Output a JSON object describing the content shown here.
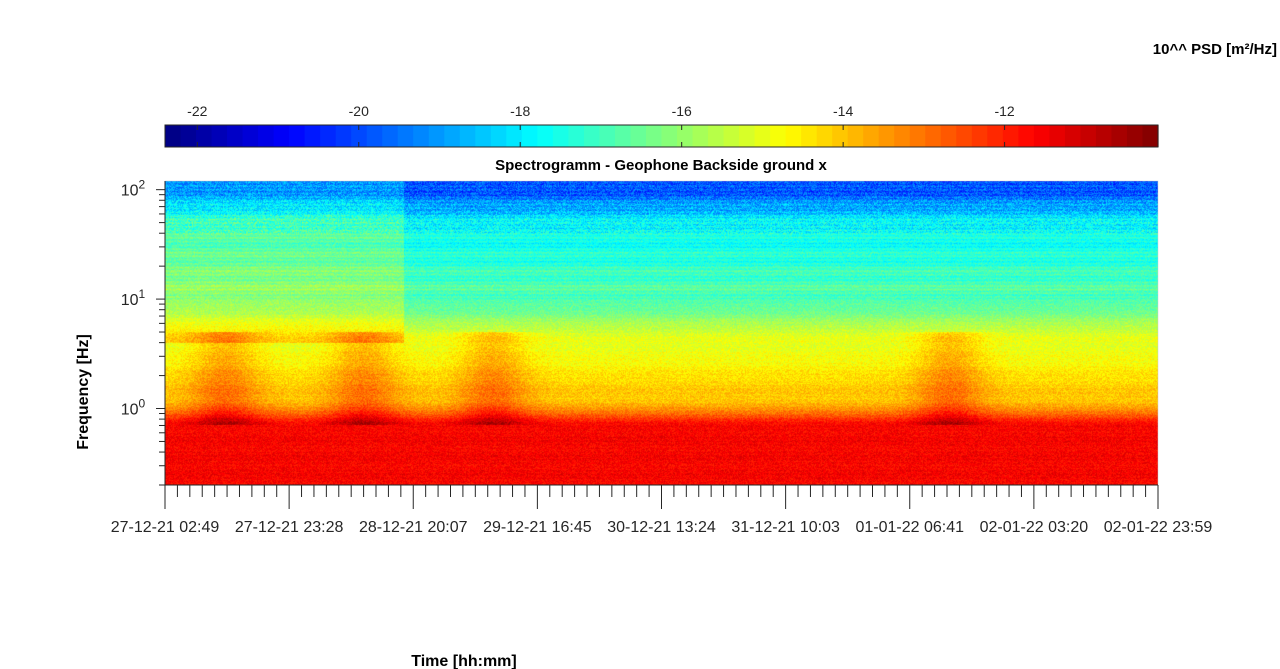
{
  "chart_data": {
    "type": "heatmap",
    "title": "Spectrogramm - Geophone Backside ground x",
    "xlabel": "Time [hh:mm]",
    "ylabel": "Frequency [Hz]",
    "colorbar_label": "10^^ PSD [m²/Hz]",
    "colorbar_ticks": [
      -22,
      -20,
      -18,
      -16,
      -14,
      -12
    ],
    "colorbar_range": [
      -22.4,
      -10.1
    ],
    "colormap": "jet",
    "y_scale": "log",
    "y_range_hz": [
      0.2,
      120
    ],
    "y_ticks": [
      {
        "value": 1,
        "base": "10",
        "exp": "0"
      },
      {
        "value": 10,
        "base": "10",
        "exp": "1"
      },
      {
        "value": 100,
        "base": "10",
        "exp": "2"
      }
    ],
    "x_ticks": [
      "27-12-21 02:49",
      "27-12-21 23:28",
      "28-12-21 20:07",
      "29-12-21 16:45",
      "30-12-21 13:24",
      "31-12-21 10:03",
      "01-01-22 06:41",
      "02-01-22 03:20",
      "02-01-22 23:59"
    ],
    "x_minor_ticks_per_major": 10,
    "frequency_bands": [
      {
        "f_max_hz": 0.65,
        "log10_psd": -11.6
      },
      {
        "f_max_hz": 1.2,
        "log10_psd": -14.0
      },
      {
        "f_max_hz": 4,
        "log10_psd": -15.0
      },
      {
        "f_max_hz": 10,
        "log10_psd": -16.8
      },
      {
        "f_max_hz": 40,
        "log10_psd": -17.6
      },
      {
        "f_max_hz": 120,
        "log10_psd": -20.0
      }
    ],
    "events": [
      {
        "time_fraction": 0.06,
        "description": "elevated activity"
      },
      {
        "time_fraction": 0.2,
        "description": "elevated activity"
      },
      {
        "time_fraction": 0.33,
        "description": "elevated activity"
      },
      {
        "time_fraction": 0.79,
        "description": "elevated activity"
      }
    ],
    "regime_change_fraction": 0.24
  }
}
